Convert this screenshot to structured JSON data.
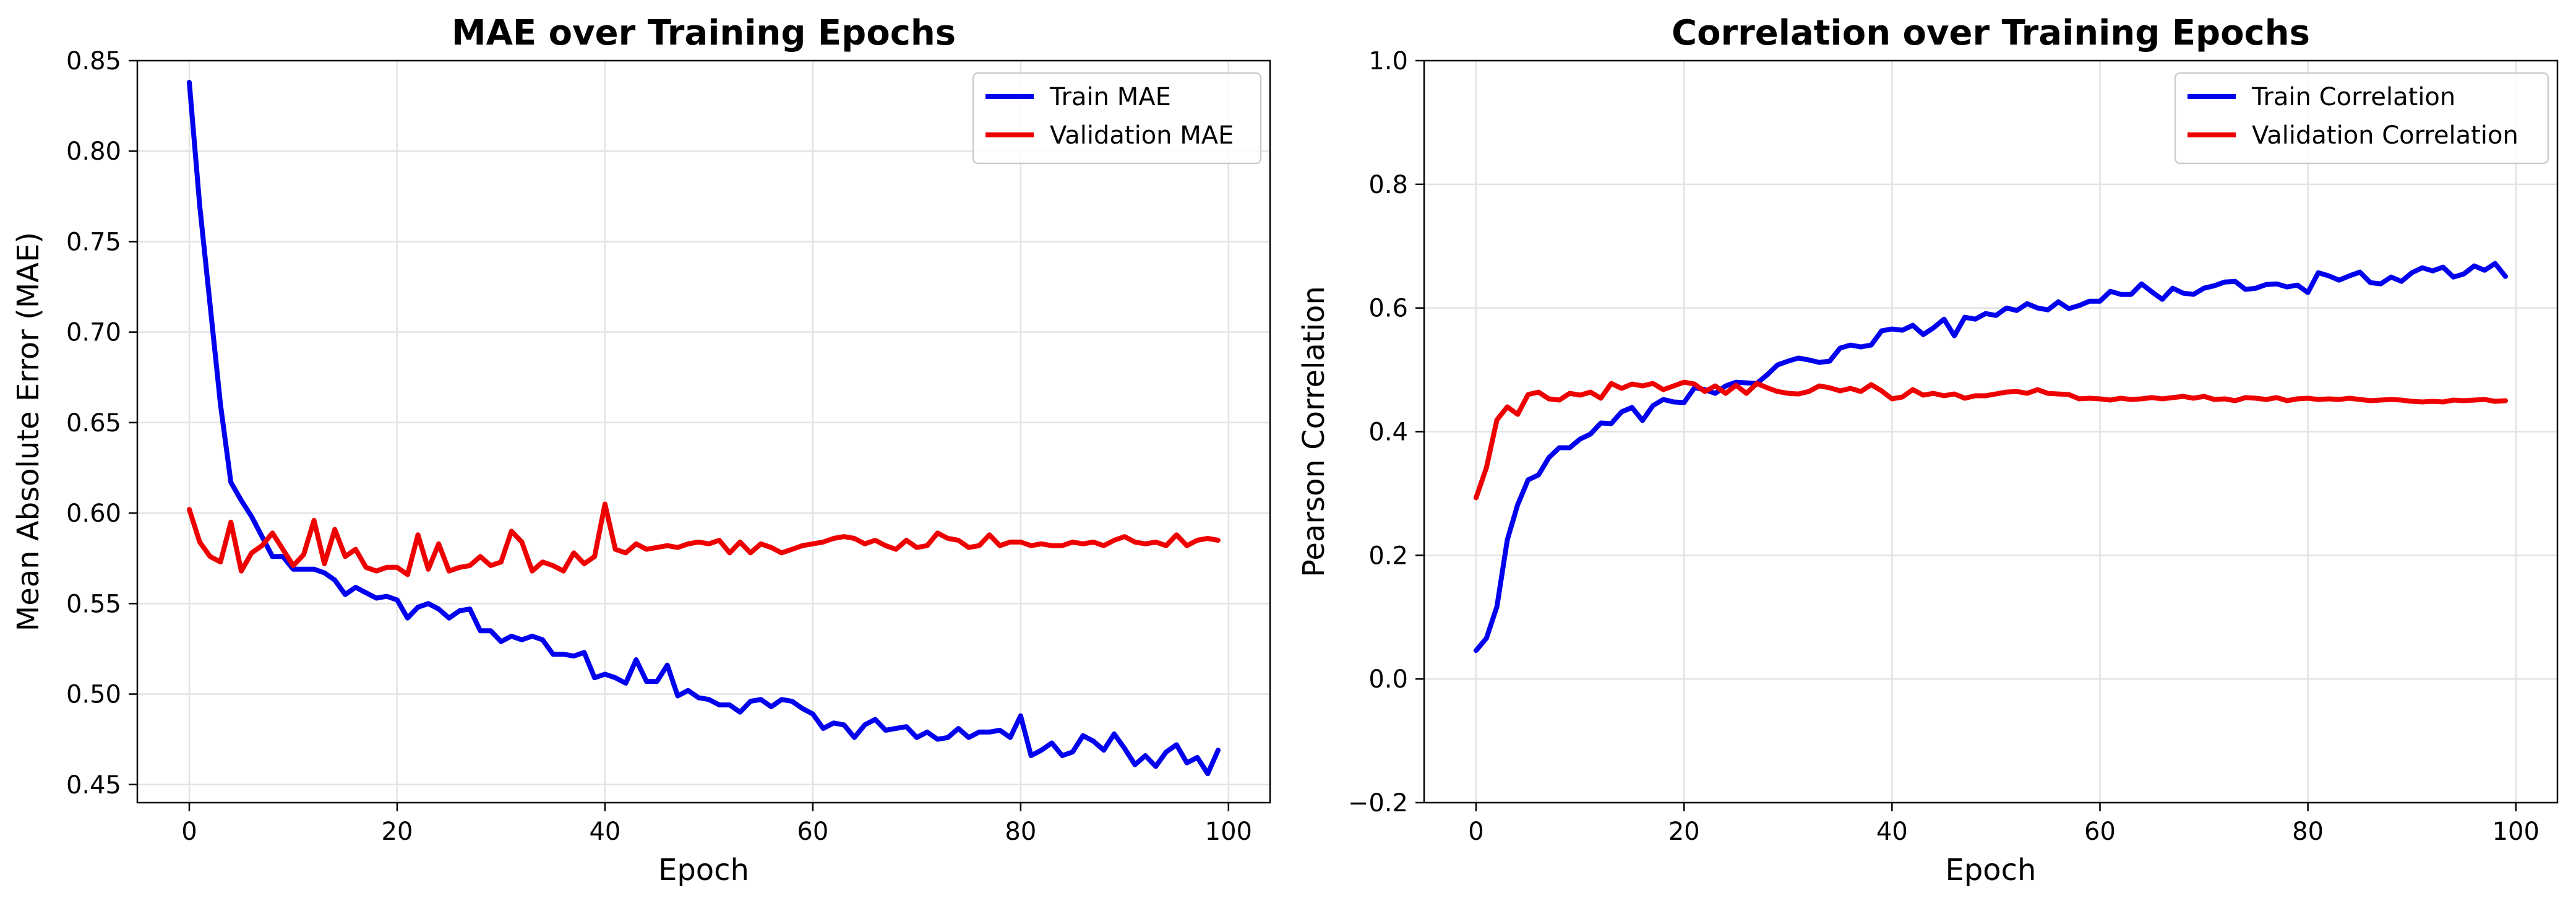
{
  "chart_data": [
    {
      "type": "line",
      "title": "MAE over Training Epochs",
      "xlabel": "Epoch",
      "ylabel": "Mean Absolute Error (MAE)",
      "xlim": [
        -5,
        104
      ],
      "ylim": [
        0.44,
        0.85
      ],
      "xticks": [
        0,
        20,
        40,
        60,
        80,
        100
      ],
      "yticks": [
        0.45,
        0.5,
        0.55,
        0.6,
        0.65,
        0.7,
        0.75,
        0.8,
        0.85
      ],
      "ytick_labels": [
        "0.45",
        "0.50",
        "0.55",
        "0.60",
        "0.65",
        "0.70",
        "0.75",
        "0.80",
        "0.85"
      ],
      "grid": true,
      "legend_position": "top-right",
      "series": [
        {
          "name": "Train MAE",
          "color": "#0000ee",
          "values": [
            0.838,
            0.77,
            0.715,
            0.66,
            0.617,
            0.607,
            0.598,
            0.587,
            0.576,
            0.576,
            0.569,
            0.569,
            0.569,
            0.567,
            0.563,
            0.555,
            0.559,
            0.556,
            0.553,
            0.554,
            0.552,
            0.542,
            0.548,
            0.55,
            0.547,
            0.542,
            0.546,
            0.547,
            0.535,
            0.535,
            0.529,
            0.532,
            0.53,
            0.532,
            0.53,
            0.522,
            0.522,
            0.521,
            0.523,
            0.509,
            0.511,
            0.509,
            0.506,
            0.519,
            0.507,
            0.507,
            0.516,
            0.499,
            0.502,
            0.498,
            0.497,
            0.494,
            0.494,
            0.49,
            0.496,
            0.497,
            0.493,
            0.497,
            0.496,
            0.492,
            0.489,
            0.481,
            0.484,
            0.483,
            0.476,
            0.483,
            0.486,
            0.48,
            0.481,
            0.482,
            0.476,
            0.479,
            0.475,
            0.476,
            0.481,
            0.476,
            0.479,
            0.479,
            0.48,
            0.476,
            0.488,
            0.466,
            0.469,
            0.473,
            0.466,
            0.468,
            0.477,
            0.474,
            0.469,
            0.478,
            0.47,
            0.461,
            0.466,
            0.46,
            0.468,
            0.472,
            0.462,
            0.465,
            0.456,
            0.469
          ]
        },
        {
          "name": "Validation MAE",
          "color": "#ee0000",
          "values": [
            0.602,
            0.584,
            0.576,
            0.573,
            0.595,
            0.568,
            0.578,
            0.582,
            0.589,
            0.58,
            0.571,
            0.577,
            0.596,
            0.572,
            0.591,
            0.576,
            0.58,
            0.57,
            0.568,
            0.57,
            0.57,
            0.566,
            0.588,
            0.569,
            0.583,
            0.568,
            0.57,
            0.571,
            0.576,
            0.571,
            0.573,
            0.59,
            0.584,
            0.568,
            0.573,
            0.571,
            0.568,
            0.578,
            0.572,
            0.576,
            0.605,
            0.58,
            0.578,
            0.583,
            0.58,
            0.581,
            0.582,
            0.581,
            0.583,
            0.584,
            0.583,
            0.585,
            0.578,
            0.584,
            0.578,
            0.583,
            0.581,
            0.578,
            0.58,
            0.582,
            0.583,
            0.584,
            0.586,
            0.587,
            0.586,
            0.583,
            0.585,
            0.582,
            0.58,
            0.585,
            0.581,
            0.582,
            0.589,
            0.586,
            0.585,
            0.581,
            0.582,
            0.588,
            0.582,
            0.584,
            0.584,
            0.582,
            0.583,
            0.582,
            0.582,
            0.584,
            0.583,
            0.584,
            0.582,
            0.585,
            0.587,
            0.584,
            0.583,
            0.584,
            0.582,
            0.588,
            0.582,
            0.585,
            0.586,
            0.585
          ]
        }
      ]
    },
    {
      "type": "line",
      "title": "Correlation over Training Epochs",
      "xlabel": "Epoch",
      "ylabel": "Pearson Correlation",
      "xlim": [
        -5,
        104
      ],
      "ylim": [
        -0.2,
        1.0
      ],
      "xticks": [
        0,
        20,
        40,
        60,
        80,
        100
      ],
      "yticks": [
        -0.2,
        0.0,
        0.2,
        0.4,
        0.6,
        0.8,
        1.0
      ],
      "ytick_labels": [
        "−0.2",
        "0.0",
        "0.2",
        "0.4",
        "0.6",
        "0.8",
        "1.0"
      ],
      "grid": true,
      "legend_position": "top-right",
      "series": [
        {
          "name": "Train Correlation",
          "color": "#0000ee",
          "values": [
            0.046,
            0.066,
            0.117,
            0.225,
            0.282,
            0.322,
            0.33,
            0.358,
            0.374,
            0.374,
            0.388,
            0.396,
            0.414,
            0.413,
            0.432,
            0.439,
            0.418,
            0.442,
            0.452,
            0.448,
            0.447,
            0.471,
            0.468,
            0.462,
            0.474,
            0.48,
            0.479,
            0.478,
            0.492,
            0.508,
            0.514,
            0.519,
            0.516,
            0.512,
            0.514,
            0.535,
            0.54,
            0.537,
            0.54,
            0.563,
            0.566,
            0.564,
            0.572,
            0.557,
            0.568,
            0.582,
            0.555,
            0.585,
            0.582,
            0.591,
            0.588,
            0.6,
            0.596,
            0.607,
            0.6,
            0.597,
            0.61,
            0.599,
            0.604,
            0.611,
            0.611,
            0.627,
            0.622,
            0.622,
            0.639,
            0.626,
            0.614,
            0.632,
            0.624,
            0.622,
            0.632,
            0.636,
            0.642,
            0.643,
            0.63,
            0.632,
            0.638,
            0.639,
            0.634,
            0.637,
            0.625,
            0.657,
            0.652,
            0.645,
            0.652,
            0.658,
            0.641,
            0.639,
            0.65,
            0.643,
            0.657,
            0.665,
            0.66,
            0.666,
            0.65,
            0.655,
            0.668,
            0.661,
            0.672,
            0.651
          ]
        },
        {
          "name": "Validation Correlation",
          "color": "#ee0000",
          "values": [
            0.293,
            0.342,
            0.419,
            0.44,
            0.428,
            0.46,
            0.464,
            0.453,
            0.451,
            0.462,
            0.459,
            0.464,
            0.454,
            0.478,
            0.47,
            0.477,
            0.474,
            0.478,
            0.468,
            0.474,
            0.48,
            0.477,
            0.465,
            0.474,
            0.462,
            0.475,
            0.462,
            0.478,
            0.471,
            0.465,
            0.462,
            0.461,
            0.465,
            0.474,
            0.471,
            0.466,
            0.47,
            0.465,
            0.476,
            0.466,
            0.453,
            0.456,
            0.468,
            0.459,
            0.462,
            0.458,
            0.461,
            0.454,
            0.458,
            0.458,
            0.461,
            0.464,
            0.465,
            0.462,
            0.468,
            0.462,
            0.461,
            0.46,
            0.453,
            0.454,
            0.453,
            0.451,
            0.454,
            0.452,
            0.453,
            0.455,
            0.453,
            0.455,
            0.457,
            0.454,
            0.457,
            0.452,
            0.453,
            0.45,
            0.455,
            0.454,
            0.452,
            0.455,
            0.45,
            0.453,
            0.454,
            0.452,
            0.453,
            0.452,
            0.454,
            0.452,
            0.45,
            0.451,
            0.452,
            0.451,
            0.449,
            0.448,
            0.449,
            0.448,
            0.451,
            0.45,
            0.451,
            0.452,
            0.449,
            0.45
          ]
        }
      ]
    }
  ]
}
